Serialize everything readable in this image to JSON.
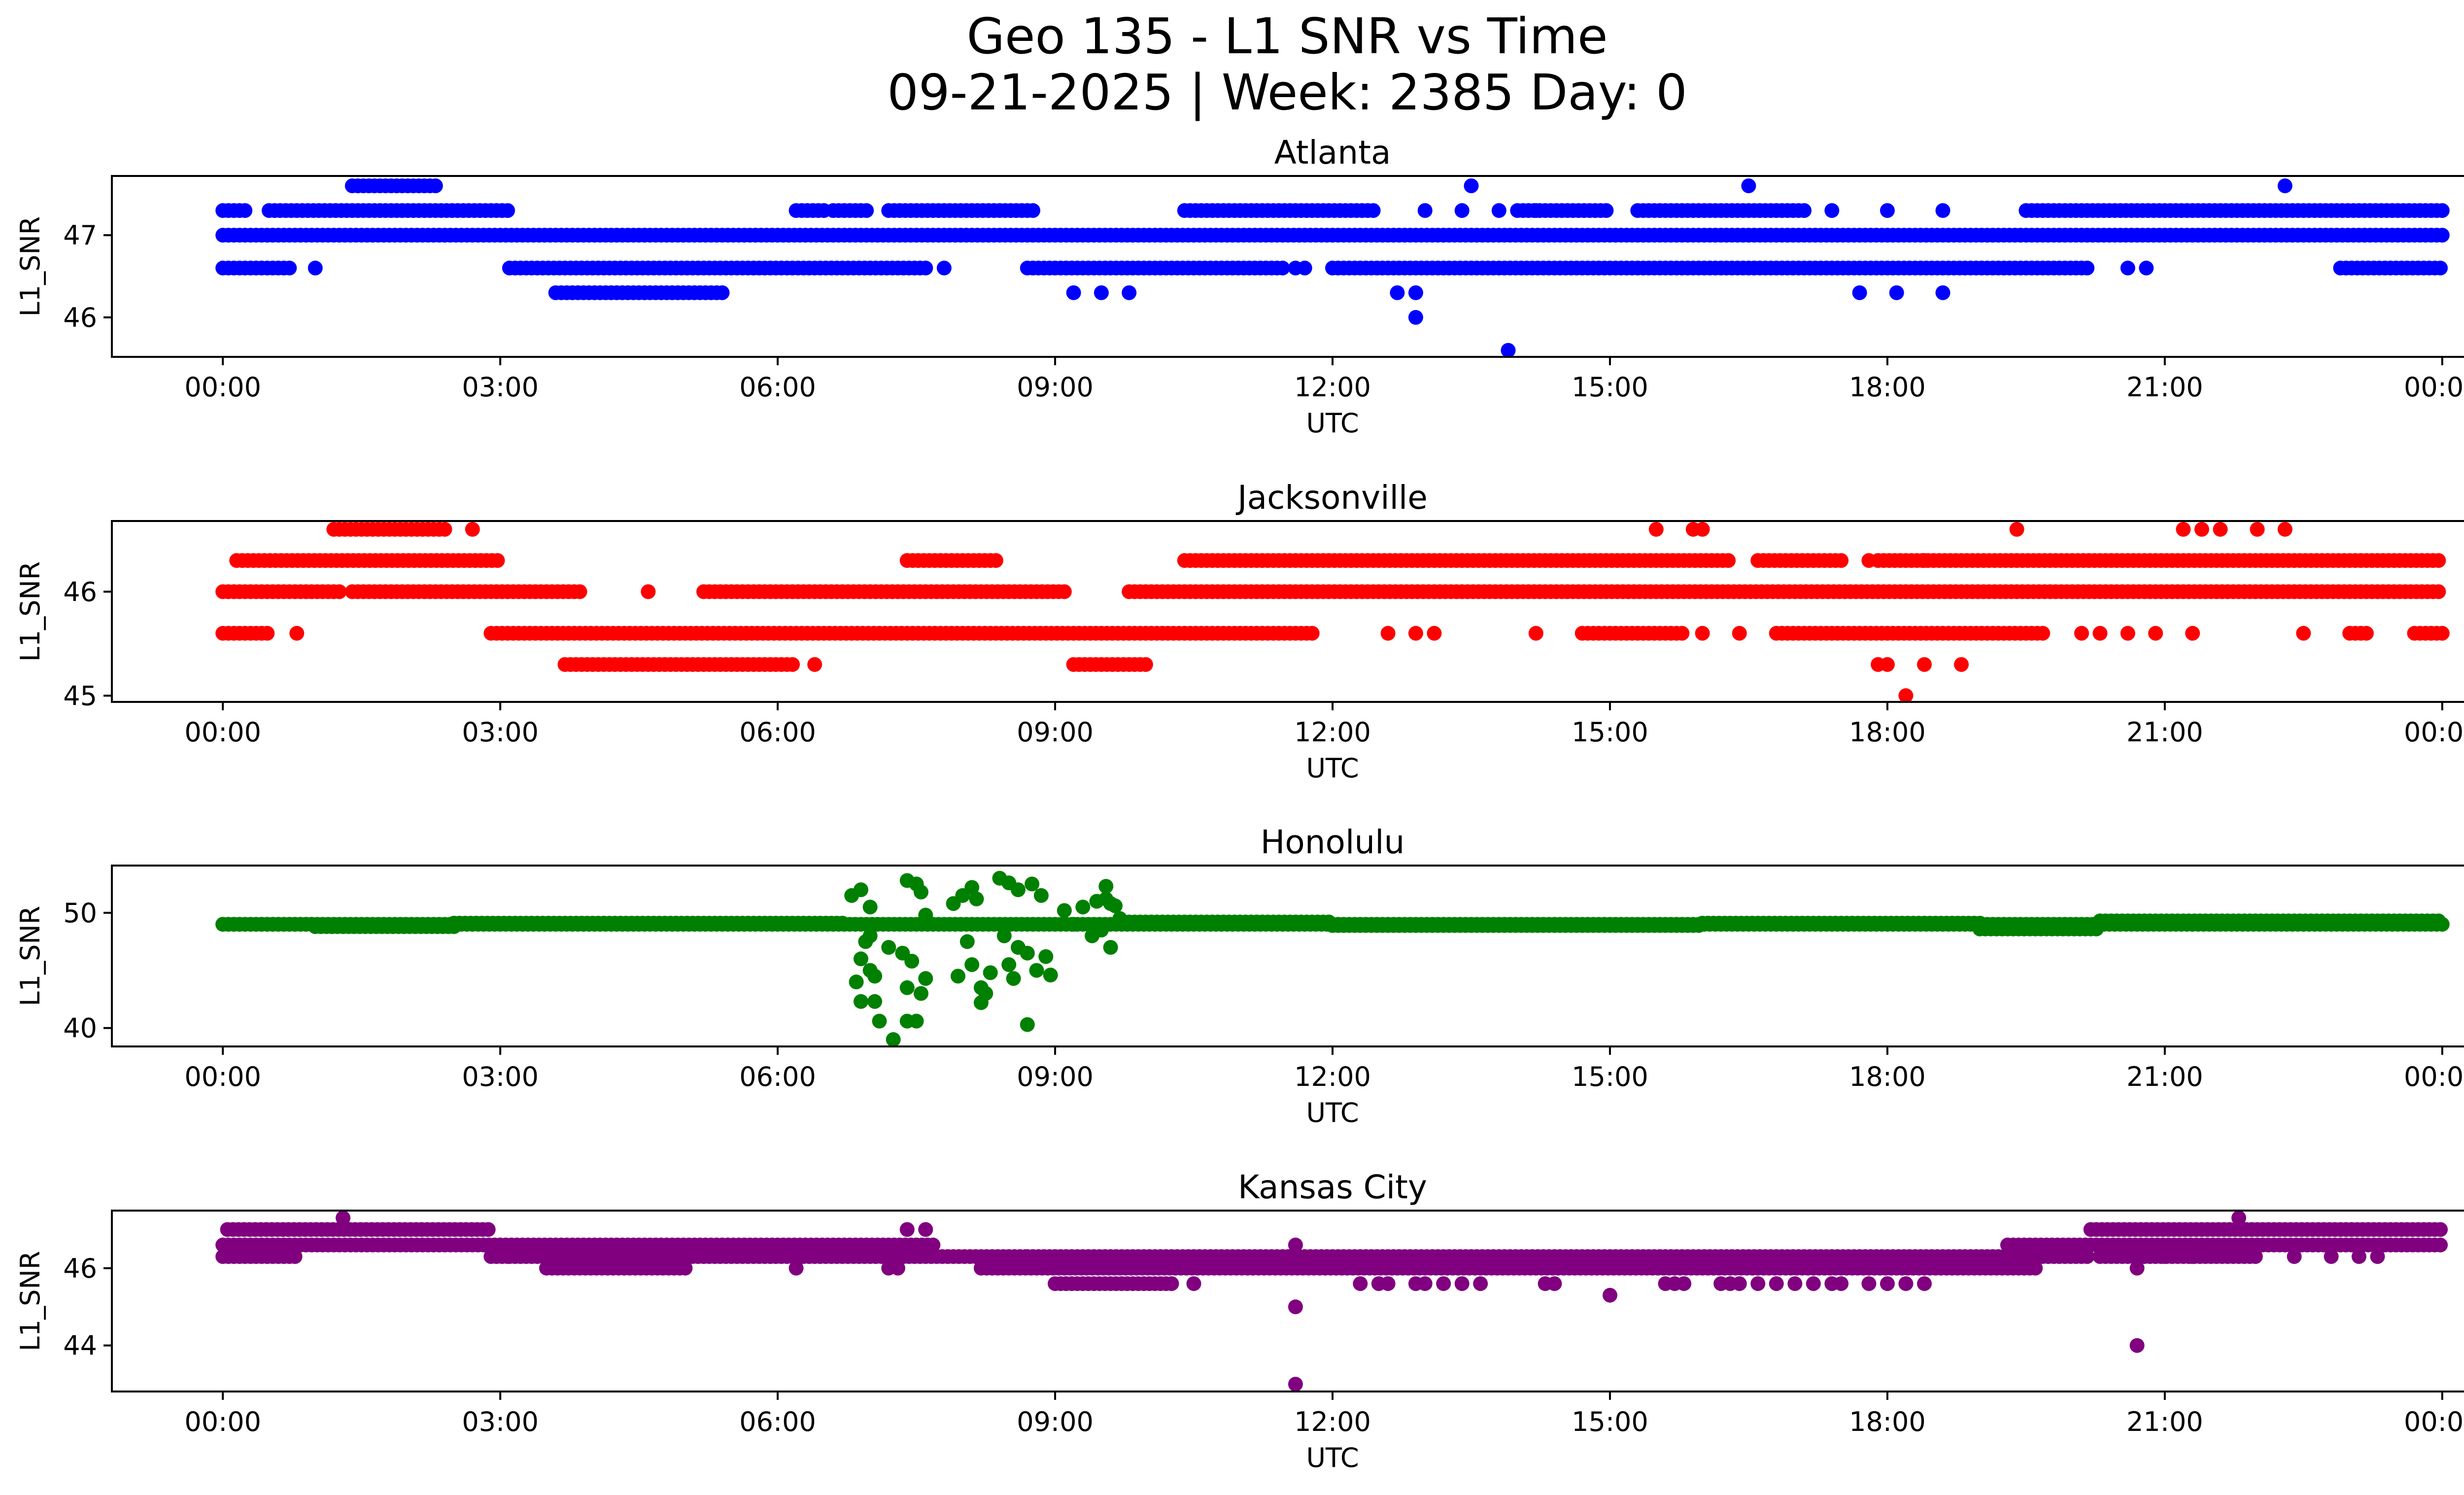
{
  "chart_data": {
    "type": "scatter",
    "title": "Geo 135 - L1 SNR vs Time",
    "subtitle": "09-21-2025 | Week: 2385 Day: 0",
    "x_tick_labels": [
      "00:00",
      "03:00",
      "06:00",
      "09:00",
      "12:00",
      "15:00",
      "18:00",
      "21:00",
      "00:00"
    ],
    "x_ticks_hours": [
      0,
      3,
      6,
      9,
      12,
      15,
      18,
      21,
      24
    ],
    "xlim_hours": [
      -1.2,
      25.2
    ],
    "xlabel": "UTC",
    "ylabel": "L1_SNR",
    "grid": false,
    "panels": [
      {
        "name": "Atlanta",
        "color": "#0000ff",
        "ylim": [
          45.52,
          47.72
        ],
        "yticks": [
          46,
          47
        ],
        "ytick_labels": [
          "46",
          "47"
        ],
        "runs": [
          [
            0.0,
            0.25,
            47.3
          ],
          [
            0.5,
            3.1,
            47.3
          ],
          [
            6.2,
            6.5,
            47.3
          ],
          [
            6.6,
            7.0,
            47.3
          ],
          [
            7.2,
            8.8,
            47.3
          ],
          [
            10.4,
            12.45,
            47.3
          ],
          [
            14.0,
            15.0,
            47.3
          ],
          [
            15.3,
            17.1,
            47.3
          ],
          [
            19.5,
            24.0,
            47.3
          ],
          [
            1.4,
            2.3,
            47.6
          ],
          [
            0.0,
            24.0,
            47.0
          ],
          [
            0.0,
            0.75,
            46.6
          ],
          [
            3.1,
            7.6,
            46.6
          ],
          [
            8.7,
            11.5,
            46.6
          ],
          [
            12.0,
            20.2,
            46.6
          ],
          [
            22.9,
            24.0,
            46.6
          ],
          [
            3.6,
            5.4,
            46.3
          ]
        ],
        "points": [
          [
            1.0,
            46.6
          ],
          [
            7.8,
            46.6
          ],
          [
            11.6,
            46.6
          ],
          [
            11.7,
            46.6
          ],
          [
            20.6,
            46.6
          ],
          [
            20.8,
            46.6
          ],
          [
            13.0,
            47.3
          ],
          [
            13.4,
            47.3
          ],
          [
            13.8,
            47.3
          ],
          [
            14.2,
            47.3
          ],
          [
            17.4,
            47.3
          ],
          [
            18.0,
            47.3
          ],
          [
            18.6,
            47.3
          ],
          [
            13.5,
            47.6
          ],
          [
            16.5,
            47.6
          ],
          [
            22.3,
            47.6
          ],
          [
            9.2,
            46.3
          ],
          [
            9.5,
            46.3
          ],
          [
            9.8,
            46.3
          ],
          [
            12.7,
            46.3
          ],
          [
            12.9,
            46.3
          ],
          [
            17.7,
            46.3
          ],
          [
            18.1,
            46.3
          ],
          [
            18.6,
            46.3
          ],
          [
            12.9,
            46.0
          ],
          [
            13.9,
            45.6
          ]
        ]
      },
      {
        "name": "Jacksonville",
        "color": "#ff0000",
        "ylim": [
          44.94,
          46.68
        ],
        "yticks": [
          45,
          46
        ],
        "ytick_labels": [
          "45",
          "46"
        ],
        "runs": [
          [
            1.2,
            2.4,
            46.6
          ],
          [
            0.15,
            3.0,
            46.3
          ],
          [
            7.4,
            8.4,
            46.3
          ],
          [
            10.4,
            16.3,
            46.3
          ],
          [
            16.6,
            17.5,
            46.3
          ],
          [
            17.9,
            24.0,
            46.3
          ],
          [
            0.0,
            1.3,
            46.0
          ],
          [
            1.4,
            3.9,
            46.0
          ],
          [
            5.2,
            9.1,
            46.0
          ],
          [
            9.8,
            24.0,
            46.0
          ],
          [
            0.0,
            0.5,
            45.6
          ],
          [
            2.9,
            11.8,
            45.6
          ],
          [
            14.7,
            15.8,
            45.6
          ],
          [
            16.8,
            19.7,
            45.6
          ],
          [
            23.0,
            23.2,
            45.6
          ],
          [
            23.7,
            24.0,
            45.6
          ],
          [
            3.7,
            6.2,
            45.3
          ],
          [
            9.2,
            10.0,
            45.3
          ]
        ],
        "points": [
          [
            2.7,
            46.6
          ],
          [
            15.5,
            46.6
          ],
          [
            15.9,
            46.6
          ],
          [
            16.0,
            46.6
          ],
          [
            19.4,
            46.6
          ],
          [
            21.2,
            46.6
          ],
          [
            21.4,
            46.6
          ],
          [
            21.6,
            46.6
          ],
          [
            22.0,
            46.6
          ],
          [
            22.3,
            46.6
          ],
          [
            4.6,
            46.0
          ],
          [
            17.8,
            46.3
          ],
          [
            18.4,
            46.3
          ],
          [
            0.8,
            45.6
          ],
          [
            12.6,
            45.6
          ],
          [
            12.9,
            45.6
          ],
          [
            13.1,
            45.6
          ],
          [
            14.2,
            45.6
          ],
          [
            16.0,
            45.6
          ],
          [
            16.4,
            45.6
          ],
          [
            20.1,
            45.6
          ],
          [
            20.3,
            45.6
          ],
          [
            20.6,
            45.6
          ],
          [
            20.9,
            45.6
          ],
          [
            21.3,
            45.6
          ],
          [
            22.5,
            45.6
          ],
          [
            6.4,
            45.3
          ],
          [
            17.9,
            45.3
          ],
          [
            18.0,
            45.3
          ],
          [
            18.4,
            45.3
          ],
          [
            18.8,
            45.3
          ],
          [
            18.2,
            45.0
          ]
        ]
      },
      {
        "name": "Honolulu",
        "color": "#008000",
        "ylim": [
          38.4,
          54.1
        ],
        "yticks": [
          40,
          50
        ],
        "ytick_labels": [
          "40",
          "50"
        ],
        "runs": [
          [
            0.0,
            1.0,
            49.0
          ],
          [
            1.0,
            2.5,
            48.8
          ],
          [
            2.5,
            6.7,
            49.1
          ],
          [
            9.8,
            12.0,
            49.2
          ],
          [
            12.0,
            16.0,
            48.9
          ],
          [
            16.0,
            19.0,
            49.1
          ],
          [
            19.0,
            20.3,
            48.6
          ],
          [
            20.3,
            24.0,
            49.3
          ],
          [
            0.0,
            24.0,
            49.0
          ]
        ],
        "points": [
          [
            6.8,
            51.5
          ],
          [
            6.9,
            52.0
          ],
          [
            7.0,
            50.5
          ],
          [
            6.95,
            47.5
          ],
          [
            6.9,
            46.0
          ],
          [
            7.0,
            45.0
          ],
          [
            6.85,
            44.0
          ],
          [
            6.9,
            42.3
          ],
          [
            7.05,
            42.3
          ],
          [
            7.1,
            40.6
          ],
          [
            7.05,
            44.5
          ],
          [
            7.0,
            48.0
          ],
          [
            7.2,
            47.0
          ],
          [
            7.25,
            39.0
          ],
          [
            7.4,
            40.6
          ],
          [
            7.5,
            40.6
          ],
          [
            7.4,
            43.5
          ],
          [
            7.45,
            45.8
          ],
          [
            7.5,
            52.5
          ],
          [
            7.55,
            51.8
          ],
          [
            7.4,
            52.8
          ],
          [
            7.6,
            49.8
          ],
          [
            7.35,
            46.5
          ],
          [
            7.6,
            44.3
          ],
          [
            7.55,
            43.0
          ],
          [
            7.9,
            50.8
          ],
          [
            8.0,
            51.5
          ],
          [
            8.1,
            52.2
          ],
          [
            8.15,
            51.2
          ],
          [
            8.05,
            47.5
          ],
          [
            8.1,
            45.5
          ],
          [
            7.95,
            44.5
          ],
          [
            8.2,
            43.5
          ],
          [
            8.3,
            44.8
          ],
          [
            8.2,
            42.2
          ],
          [
            8.25,
            43.0
          ],
          [
            8.4,
            53.0
          ],
          [
            8.5,
            52.6
          ],
          [
            8.6,
            52.0
          ],
          [
            8.75,
            52.5
          ],
          [
            8.85,
            51.5
          ],
          [
            8.45,
            48.0
          ],
          [
            8.6,
            47.0
          ],
          [
            8.5,
            45.5
          ],
          [
            8.7,
            46.5
          ],
          [
            8.8,
            45.0
          ],
          [
            8.9,
            46.2
          ],
          [
            8.95,
            44.6
          ],
          [
            8.7,
            40.3
          ],
          [
            8.55,
            44.3
          ],
          [
            9.1,
            50.2
          ],
          [
            9.2,
            49.0
          ],
          [
            9.3,
            50.5
          ],
          [
            9.45,
            51.0
          ],
          [
            9.55,
            51.2
          ],
          [
            9.6,
            50.8
          ],
          [
            9.5,
            48.5
          ],
          [
            9.6,
            47.0
          ],
          [
            9.55,
            52.3
          ],
          [
            9.4,
            48.0
          ],
          [
            9.7,
            49.5
          ],
          [
            9.65,
            50.6
          ]
        ]
      },
      {
        "name": "Kansas City",
        "color": "#800080",
        "ylim": [
          42.81,
          47.49
        ],
        "yticks": [
          44,
          46
        ],
        "ytick_labels": [
          "44",
          "46"
        ],
        "runs": [
          [
            0.05,
            0.3,
            47.0
          ],
          [
            0.35,
            2.9,
            47.0
          ],
          [
            20.2,
            24.0,
            47.0
          ],
          [
            0.0,
            3.0,
            46.6
          ],
          [
            3.0,
            7.7,
            46.6
          ],
          [
            19.3,
            24.0,
            46.6
          ],
          [
            0.0,
            0.8,
            46.3
          ],
          [
            2.9,
            3.1,
            46.3
          ],
          [
            3.1,
            8.7,
            46.3
          ],
          [
            8.7,
            20.2,
            46.3
          ],
          [
            20.3,
            22.0,
            46.3
          ],
          [
            3.5,
            5.0,
            46.0
          ],
          [
            8.2,
            19.6,
            46.0
          ],
          [
            9.0,
            10.3,
            45.6
          ]
        ],
        "points": [
          [
            1.3,
            47.3
          ],
          [
            21.8,
            47.3
          ],
          [
            7.4,
            47.0
          ],
          [
            7.6,
            47.0
          ],
          [
            6.2,
            46.0
          ],
          [
            7.2,
            46.0
          ],
          [
            7.3,
            46.0
          ],
          [
            10.5,
            45.6
          ],
          [
            11.6,
            46.6
          ],
          [
            11.6,
            45.0
          ],
          [
            11.6,
            43.0
          ],
          [
            12.3,
            45.6
          ],
          [
            12.5,
            45.6
          ],
          [
            12.6,
            45.6
          ],
          [
            12.9,
            45.6
          ],
          [
            13.0,
            45.6
          ],
          [
            13.2,
            45.6
          ],
          [
            13.4,
            45.6
          ],
          [
            13.6,
            45.6
          ],
          [
            14.3,
            45.6
          ],
          [
            14.4,
            45.6
          ],
          [
            15.0,
            45.3
          ],
          [
            15.6,
            45.6
          ],
          [
            15.7,
            45.6
          ],
          [
            15.8,
            45.6
          ],
          [
            16.2,
            45.6
          ],
          [
            16.3,
            45.6
          ],
          [
            16.4,
            45.6
          ],
          [
            16.6,
            45.6
          ],
          [
            16.8,
            45.6
          ],
          [
            17.0,
            45.6
          ],
          [
            17.2,
            45.6
          ],
          [
            17.4,
            45.6
          ],
          [
            17.5,
            45.6
          ],
          [
            17.8,
            45.6
          ],
          [
            18.0,
            45.6
          ],
          [
            18.2,
            45.6
          ],
          [
            18.4,
            45.6
          ],
          [
            20.7,
            46.0
          ],
          [
            20.7,
            44.0
          ],
          [
            21.0,
            46.3
          ],
          [
            21.3,
            46.3
          ],
          [
            22.4,
            46.3
          ],
          [
            22.8,
            46.3
          ],
          [
            23.1,
            46.3
          ],
          [
            23.3,
            46.3
          ]
        ]
      }
    ]
  }
}
